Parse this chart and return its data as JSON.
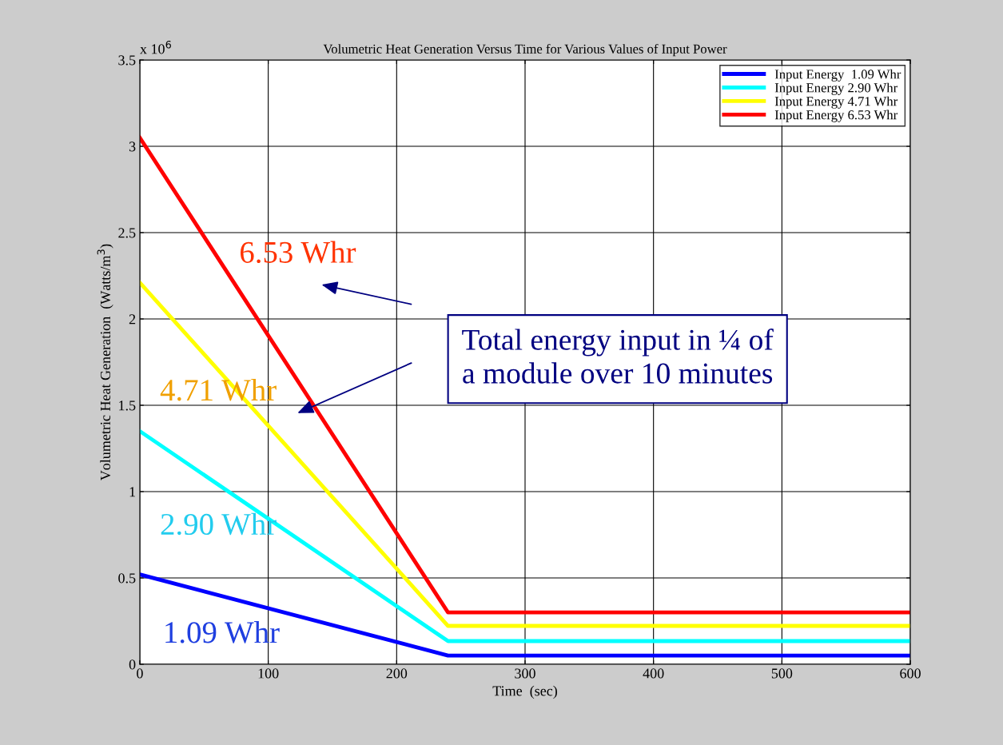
{
  "chart_data": {
    "type": "line",
    "title": "Volumetric Heat Generation Versus Time for Various Values of Input Power",
    "xlabel": "Time  (sec)",
    "ylabel": "Volumetric Heat Generation  (Watts/m$^{3}$)",
    "annotations": [
      "x 10$^{6}$",
      "1.09 Whr",
      "2.90 Whr",
      "4.71 Whr",
      "6.53 Whr",
      "Total energy input in ¼ of\na module over 10 minutes"
    ],
    "x": [
      0,
      240,
      600
    ],
    "series": [
      {
        "name": "Input Energy  1.09 Whr",
        "color": "#0000ff",
        "values": [
          0.52,
          0.05,
          0.05
        ]
      },
      {
        "name": "Input Energy 2.90 Whr",
        "color": "#00ffff",
        "values": [
          1.35,
          0.134,
          0.134
        ]
      },
      {
        "name": "Input Energy 4.71 Whr",
        "color": "#ffff00",
        "values": [
          2.21,
          0.222,
          0.222
        ]
      },
      {
        "name": "Input Energy 6.53 Whr",
        "color": "#ff0000",
        "values": [
          3.05,
          0.3,
          0.3
        ]
      }
    ],
    "xlim": [
      0,
      600
    ],
    "xticks": [
      0,
      100,
      200,
      300,
      400,
      500,
      600
    ],
    "ylim": [
      0,
      3.5
    ],
    "yticks": [
      0,
      0.5,
      1,
      1.5,
      2,
      2.5,
      3,
      3.5
    ],
    "grid": true,
    "legend": "top right",
    "marker": "none",
    "line_style": "solid"
  }
}
